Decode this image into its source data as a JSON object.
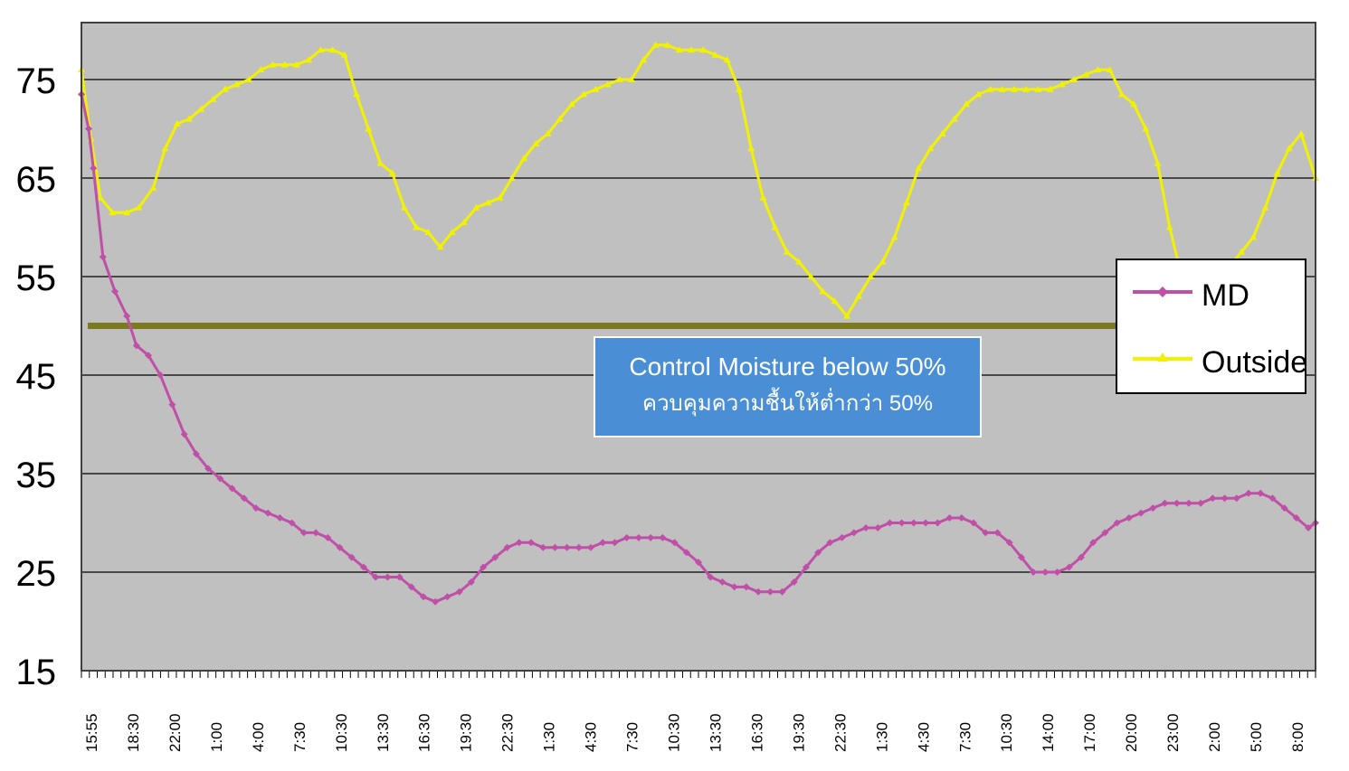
{
  "chart_data": {
    "type": "line",
    "title": "",
    "xlabel": "",
    "ylabel": "",
    "ylim": [
      15,
      80
    ],
    "yticks": [
      15,
      25,
      35,
      45,
      55,
      65,
      75
    ],
    "xticks": [
      "15:55",
      "18:30",
      "22:00",
      "1:00",
      "4:00",
      "7:30",
      "10:30",
      "13:30",
      "16:30",
      "19:30",
      "22:30",
      "1:30",
      "4:30",
      "7:30",
      "10:30",
      "13:30",
      "16:30",
      "19:30",
      "22:30",
      "1:30",
      "4:30",
      "7:30",
      "10:30",
      "14:00",
      "17:00",
      "20:00",
      "23:00",
      "2:00",
      "5:00",
      "8:00"
    ],
    "grid": true,
    "legend": "right",
    "threshold": {
      "value": 50,
      "color": "#7b7a1e"
    },
    "annotation": {
      "line1": "Control Moisture below 50%",
      "line2": "ควบคุมความชื้นให้ต่ำกว่า 50%"
    },
    "series": [
      {
        "name": "MD",
        "color": "#c04fa8",
        "marker": "diamond",
        "points": [
          [
            0,
            73.5
          ],
          [
            0.3,
            70
          ],
          [
            0.5,
            66
          ],
          [
            0.9,
            57
          ],
          [
            1.4,
            53.5
          ],
          [
            1.9,
            51
          ],
          [
            2.3,
            48
          ],
          [
            2.8,
            47
          ],
          [
            3.3,
            45
          ],
          [
            3.8,
            42
          ],
          [
            4.3,
            39
          ],
          [
            4.8,
            37
          ],
          [
            5.3,
            35.5
          ],
          [
            5.8,
            34.5
          ],
          [
            6.3,
            33.5
          ],
          [
            6.8,
            32.5
          ],
          [
            7.3,
            31.5
          ],
          [
            7.8,
            31
          ],
          [
            8.3,
            30.5
          ],
          [
            8.8,
            30
          ],
          [
            9.3,
            29
          ],
          [
            9.8,
            29
          ],
          [
            10.3,
            28.5
          ],
          [
            10.8,
            27.5
          ],
          [
            11.3,
            26.5
          ],
          [
            11.8,
            25.5
          ],
          [
            12.3,
            24.5
          ],
          [
            12.8,
            24.5
          ],
          [
            13.3,
            24.5
          ],
          [
            13.8,
            23.5
          ],
          [
            14.3,
            22.5
          ],
          [
            14.8,
            22
          ],
          [
            15.3,
            22.5
          ],
          [
            15.8,
            23
          ],
          [
            16.3,
            24
          ],
          [
            16.8,
            25.5
          ],
          [
            17.3,
            26.5
          ],
          [
            17.8,
            27.5
          ],
          [
            18.3,
            28
          ],
          [
            18.8,
            28
          ],
          [
            19.3,
            27.5
          ],
          [
            19.8,
            27.5
          ],
          [
            20.3,
            27.5
          ],
          [
            20.8,
            27.5
          ],
          [
            21.3,
            27.5
          ],
          [
            21.8,
            28
          ],
          [
            22.3,
            28
          ],
          [
            22.8,
            28.5
          ],
          [
            23.3,
            28.5
          ],
          [
            23.8,
            28.5
          ],
          [
            24.3,
            28.5
          ],
          [
            24.8,
            28
          ],
          [
            25.3,
            27
          ],
          [
            25.8,
            26
          ],
          [
            26.3,
            24.5
          ],
          [
            26.8,
            24
          ],
          [
            27.3,
            23.5
          ],
          [
            27.8,
            23.5
          ],
          [
            28.3,
            23
          ],
          [
            28.8,
            23
          ],
          [
            29.3,
            23
          ],
          [
            29.8,
            24
          ],
          [
            30.3,
            25.5
          ],
          [
            30.8,
            27
          ],
          [
            31.3,
            28
          ],
          [
            31.8,
            28.5
          ],
          [
            32.3,
            29
          ],
          [
            32.8,
            29.5
          ],
          [
            33.3,
            29.5
          ],
          [
            33.8,
            30
          ],
          [
            34.3,
            30
          ],
          [
            34.8,
            30
          ],
          [
            35.3,
            30
          ],
          [
            35.8,
            30
          ],
          [
            36.3,
            30.5
          ],
          [
            36.8,
            30.5
          ],
          [
            37.3,
            30
          ],
          [
            37.8,
            29
          ],
          [
            38.3,
            29
          ],
          [
            38.8,
            28
          ],
          [
            39.3,
            26.5
          ],
          [
            39.8,
            25
          ],
          [
            40.3,
            25
          ],
          [
            40.8,
            25
          ],
          [
            41.3,
            25.5
          ],
          [
            41.8,
            26.5
          ],
          [
            42.3,
            28
          ],
          [
            42.8,
            29
          ],
          [
            43.3,
            30
          ],
          [
            43.8,
            30.5
          ],
          [
            44.3,
            31
          ],
          [
            44.8,
            31.5
          ],
          [
            45.3,
            32
          ],
          [
            45.8,
            32
          ],
          [
            46.3,
            32
          ],
          [
            46.8,
            32
          ],
          [
            47.3,
            32.5
          ],
          [
            47.8,
            32.5
          ],
          [
            48.3,
            32.5
          ],
          [
            48.8,
            33
          ],
          [
            49.3,
            33
          ],
          [
            49.8,
            32.5
          ],
          [
            50.3,
            31.5
          ],
          [
            50.8,
            30.5
          ],
          [
            51.3,
            29.5
          ],
          [
            51.6,
            30
          ]
        ]
      },
      {
        "name": "Outside",
        "color": "#f2f200",
        "marker": "triangle",
        "points": [
          [
            0,
            76
          ],
          [
            0.4,
            69
          ],
          [
            0.8,
            63
          ],
          [
            1.3,
            61.5
          ],
          [
            1.9,
            61.5
          ],
          [
            2.4,
            62
          ],
          [
            3.0,
            64
          ],
          [
            3.5,
            68
          ],
          [
            4.0,
            70.5
          ],
          [
            4.5,
            71
          ],
          [
            5.0,
            72
          ],
          [
            5.5,
            73
          ],
          [
            6.0,
            74
          ],
          [
            6.5,
            74.5
          ],
          [
            7.0,
            75
          ],
          [
            7.5,
            76
          ],
          [
            8.0,
            76.5
          ],
          [
            8.5,
            76.5
          ],
          [
            9.0,
            76.5
          ],
          [
            9.5,
            77
          ],
          [
            10.0,
            78
          ],
          [
            10.5,
            78
          ],
          [
            11.0,
            77.5
          ],
          [
            11.5,
            73.5
          ],
          [
            12.0,
            70
          ],
          [
            12.5,
            66.5
          ],
          [
            13.0,
            65.5
          ],
          [
            13.5,
            62
          ],
          [
            14.0,
            60
          ],
          [
            14.5,
            59.5
          ],
          [
            15.0,
            58
          ],
          [
            15.5,
            59.5
          ],
          [
            16.0,
            60.5
          ],
          [
            16.5,
            62
          ],
          [
            17.0,
            62.5
          ],
          [
            17.5,
            63
          ],
          [
            18.0,
            65
          ],
          [
            18.5,
            67
          ],
          [
            19.0,
            68.5
          ],
          [
            19.5,
            69.5
          ],
          [
            20.0,
            71
          ],
          [
            20.5,
            72.5
          ],
          [
            21.0,
            73.5
          ],
          [
            21.5,
            74
          ],
          [
            22.0,
            74.5
          ],
          [
            22.5,
            75
          ],
          [
            23.0,
            75
          ],
          [
            23.5,
            77
          ],
          [
            24.0,
            78.5
          ],
          [
            24.5,
            78.5
          ],
          [
            25.0,
            78
          ],
          [
            25.5,
            78
          ],
          [
            26.0,
            78
          ],
          [
            26.5,
            77.5
          ],
          [
            27.0,
            77
          ],
          [
            27.5,
            74
          ],
          [
            28.0,
            68
          ],
          [
            28.5,
            63
          ],
          [
            29.0,
            60
          ],
          [
            29.5,
            57.5
          ],
          [
            30.0,
            56.5
          ],
          [
            30.5,
            55
          ],
          [
            31.0,
            53.5
          ],
          [
            31.5,
            52.5
          ],
          [
            32.0,
            51
          ],
          [
            32.5,
            53
          ],
          [
            33.0,
            55
          ],
          [
            33.5,
            56.5
          ],
          [
            34.0,
            59
          ],
          [
            34.5,
            62.5
          ],
          [
            35.0,
            66
          ],
          [
            35.5,
            68
          ],
          [
            36.0,
            69.5
          ],
          [
            36.5,
            71
          ],
          [
            37.0,
            72.5
          ],
          [
            37.5,
            73.5
          ],
          [
            38.0,
            74
          ],
          [
            38.5,
            74
          ],
          [
            39.0,
            74
          ],
          [
            39.5,
            74
          ],
          [
            40.0,
            74
          ],
          [
            40.5,
            74
          ],
          [
            41.0,
            74.5
          ],
          [
            41.5,
            75
          ],
          [
            42.0,
            75.5
          ],
          [
            42.5,
            76
          ],
          [
            43.0,
            76
          ],
          [
            43.5,
            73.5
          ],
          [
            44.0,
            72.5
          ],
          [
            44.5,
            70
          ],
          [
            45.0,
            66.5
          ],
          [
            45.5,
            60
          ],
          [
            46.0,
            55
          ],
          [
            46.5,
            55
          ],
          [
            47.0,
            55
          ],
          [
            47.5,
            55
          ],
          [
            48.0,
            56
          ],
          [
            48.5,
            57.5
          ],
          [
            49.0,
            59
          ],
          [
            49.5,
            62
          ],
          [
            50.0,
            65.5
          ],
          [
            50.5,
            68
          ],
          [
            51.0,
            69.5
          ],
          [
            51.6,
            65
          ]
        ]
      }
    ]
  }
}
